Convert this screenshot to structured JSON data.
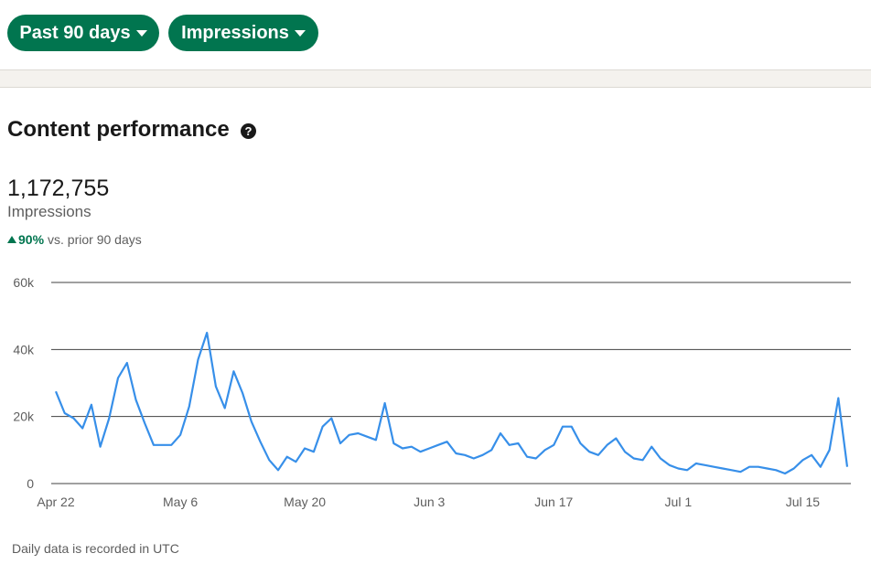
{
  "filters": {
    "range_label": "Past 90 days",
    "metric_label": "Impressions"
  },
  "section": {
    "title": "Content performance",
    "help_glyph": "?"
  },
  "summary": {
    "total": "1,172,755",
    "metric": "Impressions",
    "change_pct": "90%",
    "change_text": "vs. prior 90 days"
  },
  "footnote": "Daily data is recorded in UTC",
  "colors": {
    "accent": "#01754f",
    "line": "#378fe9"
  },
  "chart_data": {
    "type": "line",
    "title": "",
    "xlabel": "",
    "ylabel": "",
    "ylim": [
      0,
      60000
    ],
    "y_ticks": [
      0,
      20000,
      40000,
      60000
    ],
    "y_tick_labels": [
      "0",
      "20k",
      "40k",
      "60k"
    ],
    "x_tick_labels": [
      "Apr 22",
      "May 6",
      "May 20",
      "Jun 3",
      "Jun 17",
      "Jul 1",
      "Jul 15"
    ],
    "x_tick_indices": [
      0,
      14,
      28,
      42,
      56,
      70,
      84
    ],
    "grid": true,
    "legend": "none",
    "series": [
      {
        "values": [
          27500,
          21000,
          19500,
          16500,
          23500,
          11000,
          19500,
          31500,
          36000,
          25000,
          18000,
          11500,
          11500,
          11500,
          14500,
          23000,
          37000,
          45000,
          29000,
          22500,
          33500,
          27000,
          18500,
          12500,
          7000,
          4000,
          8000,
          6500,
          10500,
          9500,
          17000,
          19500,
          12000,
          14500,
          15000,
          14000,
          13000,
          24000,
          12000,
          10500,
          11000,
          9500,
          10500,
          11500,
          12500,
          9000,
          8500,
          7500,
          8500,
          10000,
          15000,
          11500,
          12000,
          8000,
          7500,
          10000,
          11500,
          17000,
          17000,
          12000,
          9500,
          8500,
          11500,
          13500,
          9500,
          7500,
          7000,
          11000,
          7500,
          5500,
          4500,
          4000,
          6000,
          5500,
          5000,
          4500,
          4000,
          3500,
          5000,
          5000,
          4500,
          4000,
          3000,
          4500,
          7000,
          8500,
          5000,
          10000,
          25500,
          5000
        ]
      }
    ]
  }
}
